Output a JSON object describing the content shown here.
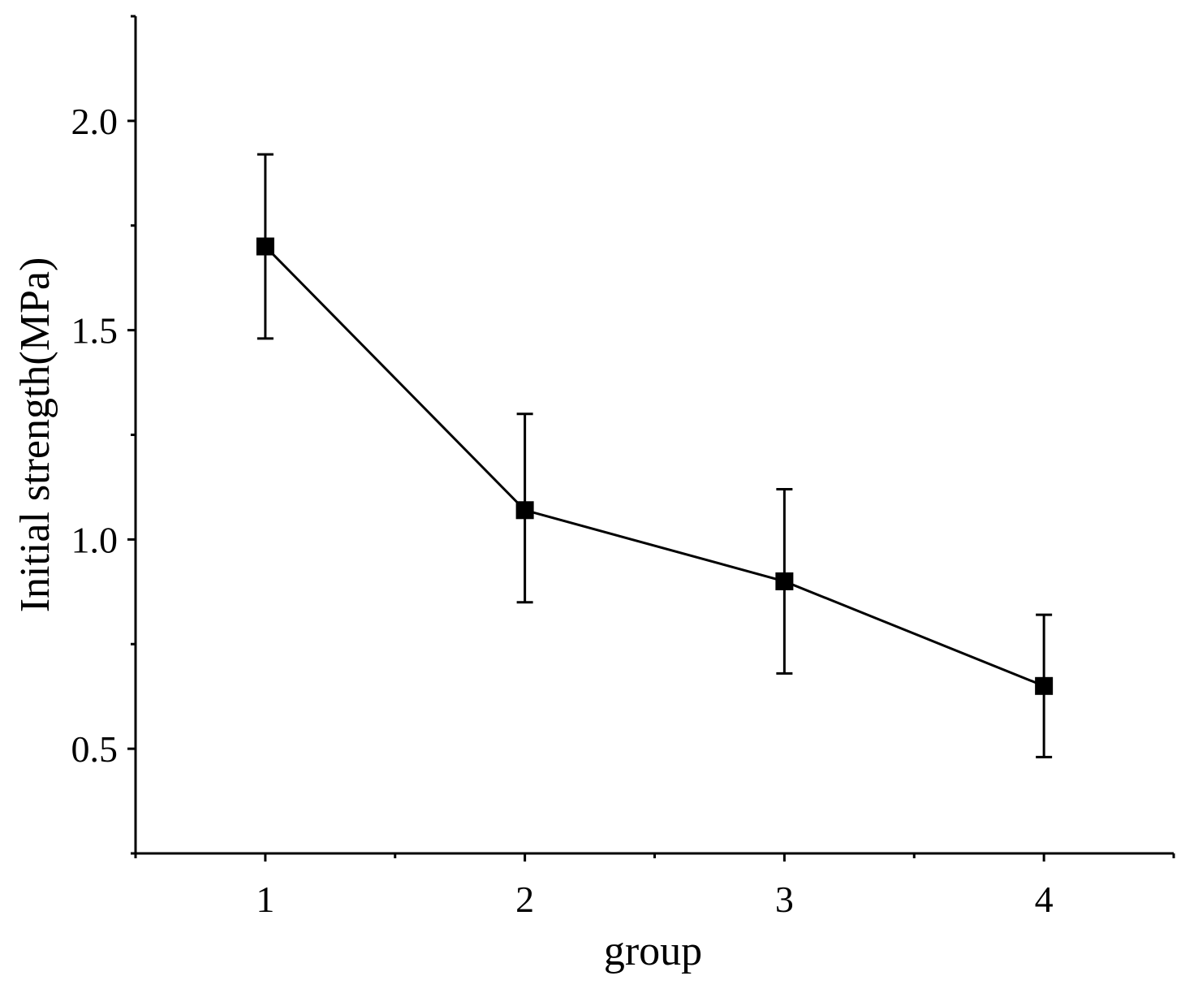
{
  "chart_data": {
    "type": "line",
    "x": [
      1,
      2,
      3,
      4
    ],
    "series": [
      {
        "values": [
          1.7,
          1.07,
          0.9,
          0.65
        ],
        "error_upper": [
          1.92,
          1.3,
          1.12,
          0.82
        ],
        "error_lower": [
          1.48,
          0.85,
          0.68,
          0.48
        ],
        "marker": "square",
        "color": "#000000"
      }
    ],
    "xlabel": "group",
    "ylabel": "Initial strength(MPa)",
    "xlim": [
      0.5,
      4.5
    ],
    "ylim": [
      0.25,
      2.25
    ],
    "x_ticks": [
      1,
      2,
      3,
      4
    ],
    "x_tick_labels": [
      "1",
      "2",
      "3",
      "4"
    ],
    "x_minor_ticks": [
      1.5,
      2.5,
      3.5
    ],
    "y_ticks": [
      0.5,
      1.0,
      1.5,
      2.0
    ],
    "y_tick_labels": [
      "0.5",
      "1.0",
      "1.5",
      "2.0"
    ],
    "y_minor_ticks": [
      0.75,
      1.25,
      1.75
    ],
    "grid": false
  }
}
